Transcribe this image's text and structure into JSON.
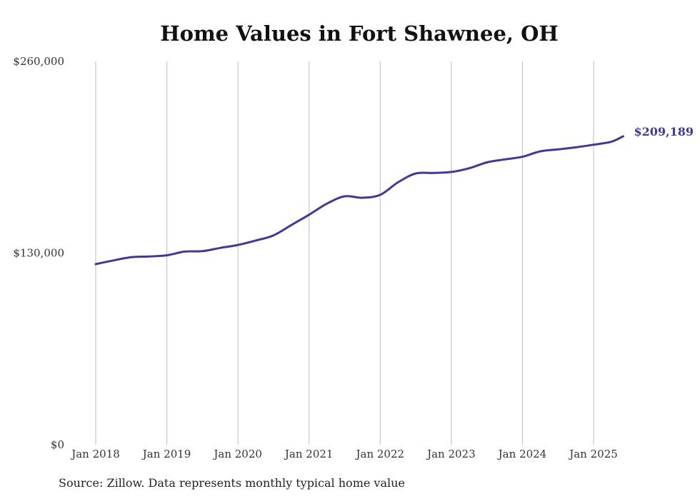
{
  "chart_data": {
    "type": "line",
    "title": "Home Values in Fort Shawnee, OH",
    "xlabel": "",
    "ylabel": "",
    "x_ticks": [
      "Jan 2018",
      "Jan 2019",
      "Jan 2020",
      "Jan 2021",
      "Jan 2022",
      "Jan 2023",
      "Jan 2024",
      "Jan 2025"
    ],
    "y_ticks": [
      "$0",
      "$130,000",
      "$260,000"
    ],
    "ylim": [
      0,
      260000
    ],
    "xlim": [
      "2018-01",
      "2025-06"
    ],
    "grid": "vertical",
    "line_color": "#3f3a95",
    "series": [
      {
        "name": "",
        "x": [
          "2018-01",
          "2018-04",
          "2018-07",
          "2018-10",
          "2019-01",
          "2019-04",
          "2019-07",
          "2019-10",
          "2020-01",
          "2020-04",
          "2020-07",
          "2020-10",
          "2021-01",
          "2021-04",
          "2021-07",
          "2021-10",
          "2022-01",
          "2022-04",
          "2022-07",
          "2022-10",
          "2023-01",
          "2023-04",
          "2023-07",
          "2023-10",
          "2024-01",
          "2024-04",
          "2024-07",
          "2024-10",
          "2025-01",
          "2025-04",
          "2025-06"
        ],
        "values": [
          122500,
          125000,
          127200,
          127700,
          128500,
          131000,
          131300,
          133500,
          135500,
          138500,
          142000,
          149000,
          156000,
          163500,
          168500,
          167500,
          169500,
          178000,
          184000,
          184300,
          185000,
          187500,
          191500,
          193500,
          195300,
          199000,
          200300,
          201700,
          203500,
          205500,
          209189
        ]
      }
    ],
    "end_label": "$209,189"
  },
  "source": "Source: Zillow. Data represents monthly typical home value"
}
